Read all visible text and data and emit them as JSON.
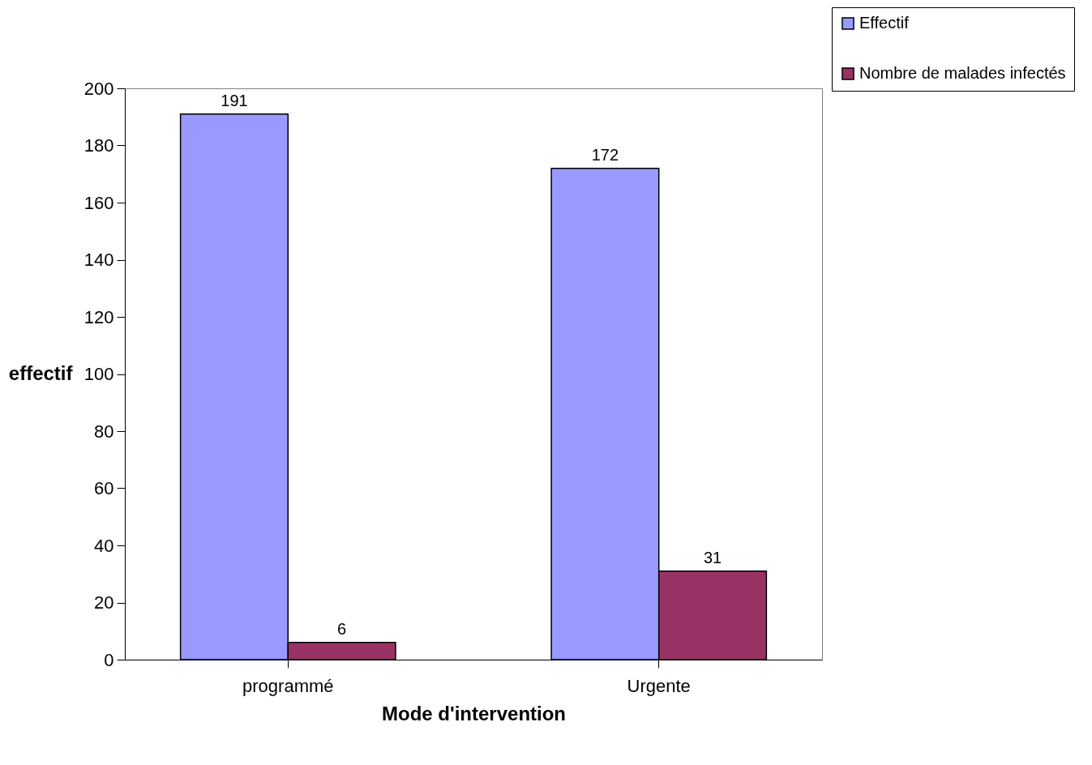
{
  "chart_data": {
    "type": "bar",
    "categories": [
      "programmé",
      "Urgente"
    ],
    "series": [
      {
        "name": "Effectif",
        "color": "#9999ff",
        "values": [
          191,
          172
        ]
      },
      {
        "name": "Nombre de malades infectés",
        "color": "#993366",
        "values": [
          6,
          31
        ]
      }
    ],
    "xlabel": "Mode d'intervention",
    "ylabel": "effectif",
    "ylim": [
      0,
      200
    ],
    "yticks": [
      0,
      20,
      40,
      60,
      80,
      100,
      120,
      140,
      160,
      180,
      200
    ],
    "data_labels": true,
    "grid": false,
    "legend": "top right"
  }
}
